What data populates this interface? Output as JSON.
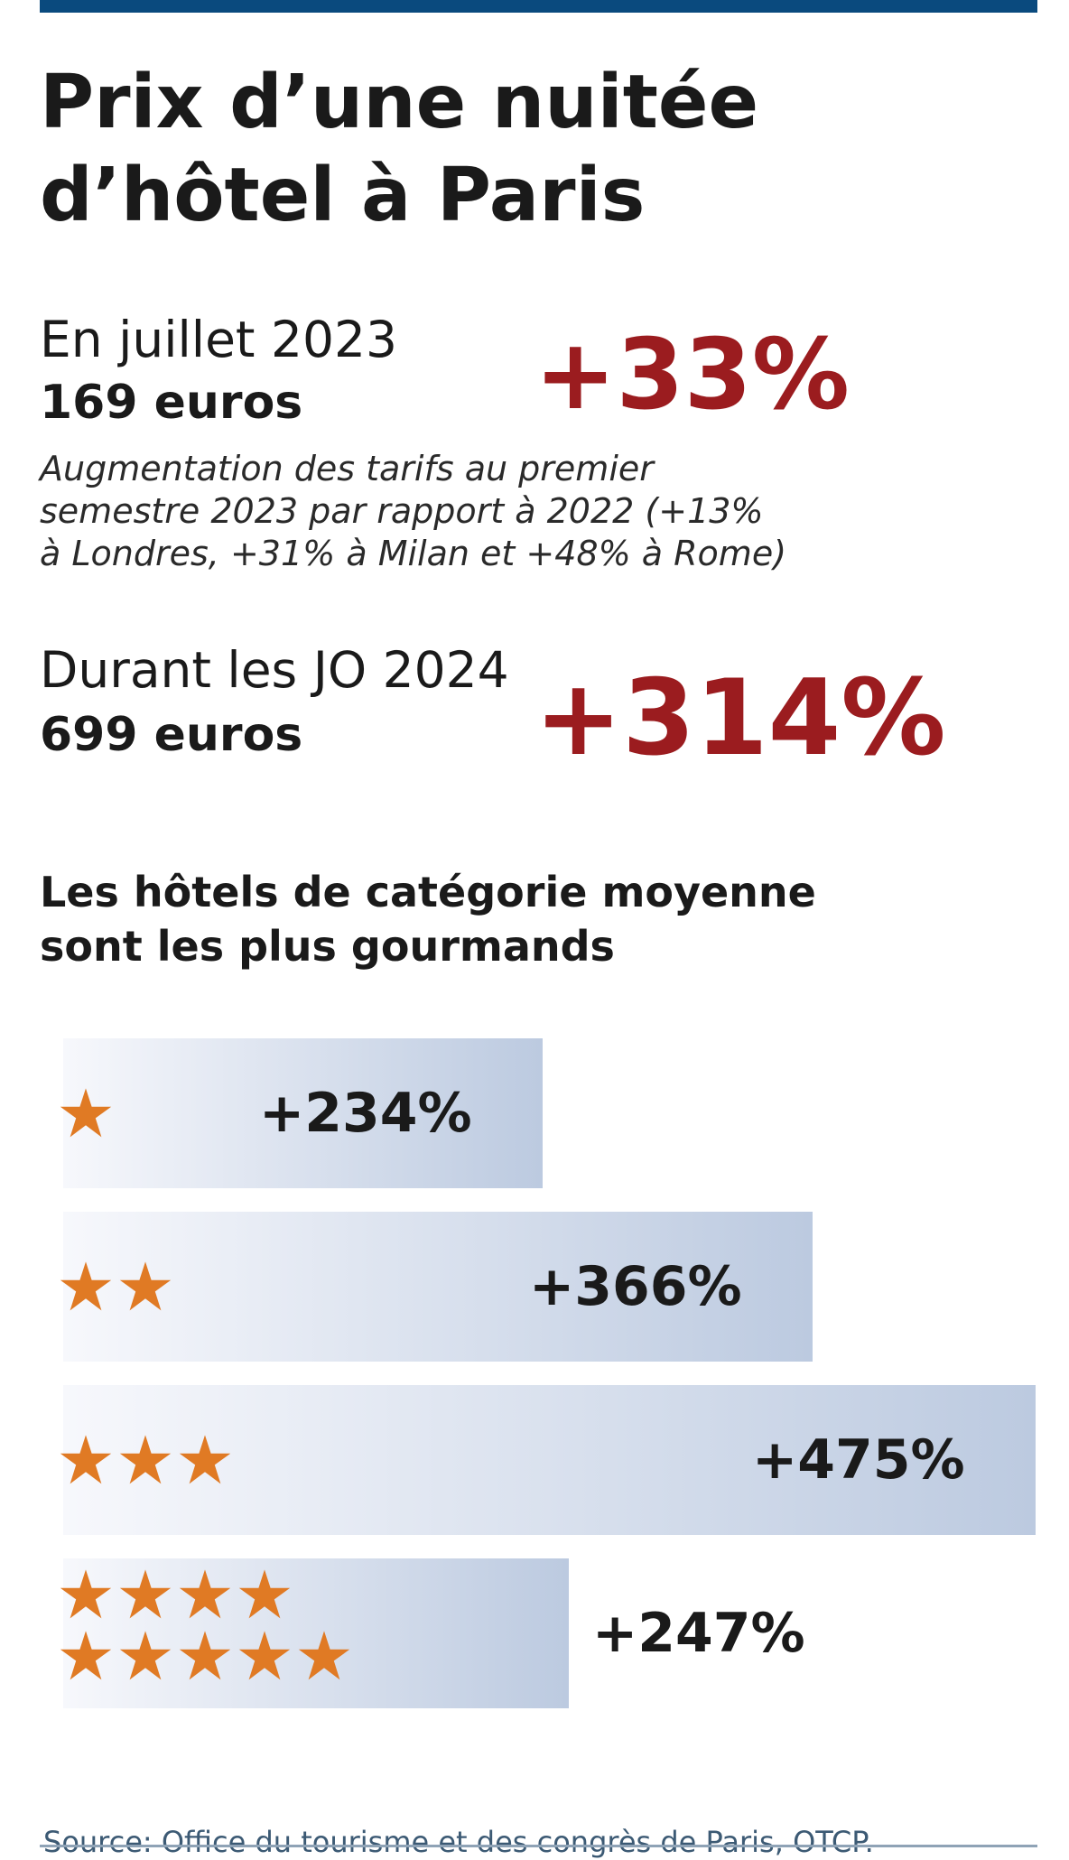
{
  "colors": {
    "top_rule": "#0a4a7e",
    "accent_red": "#9b1c1f",
    "star_orange": "#e07a24",
    "bar_start": "#f7f8fc",
    "bar_end": "#bccae0",
    "source_text": "#3c5a74",
    "source_rule": "#8fa3b6"
  },
  "header": {
    "title_line1": "Prix d’une nuitée",
    "title_line2": "d’hôtel à Paris"
  },
  "stats": [
    {
      "label": "En juillet 2023",
      "value": "169 euros",
      "change": "+33%"
    },
    {
      "label": "Durant les JO 2024",
      "value": "699 euros",
      "change": "+314%"
    }
  ],
  "note": {
    "line1": "Augmentation des tarifs au premier",
    "line2": "semestre 2023 par rapport à 2022 (+13%",
    "line3": "à Londres, +31% à Milan et +48% à Rome)"
  },
  "chart_data": {
    "type": "bar",
    "orientation": "horizontal",
    "title_line1": "Les hôtels de catégorie moyenne",
    "title_line2": "sont les plus gourmands",
    "categories": [
      "1 étoile",
      "2 étoiles",
      "3 étoiles",
      "4 et 5 étoiles"
    ],
    "star_rows": [
      [
        1
      ],
      [
        2
      ],
      [
        3
      ],
      [
        4,
        5
      ]
    ],
    "values": [
      234,
      366,
      475,
      247
    ],
    "value_labels": [
      "+234%",
      "+366%",
      "+475%",
      "+247%"
    ],
    "unit": "%",
    "xlim": [
      0,
      475
    ]
  },
  "footer": {
    "source": "Source: Office du tourisme et des congrès de Paris, OTCP."
  }
}
